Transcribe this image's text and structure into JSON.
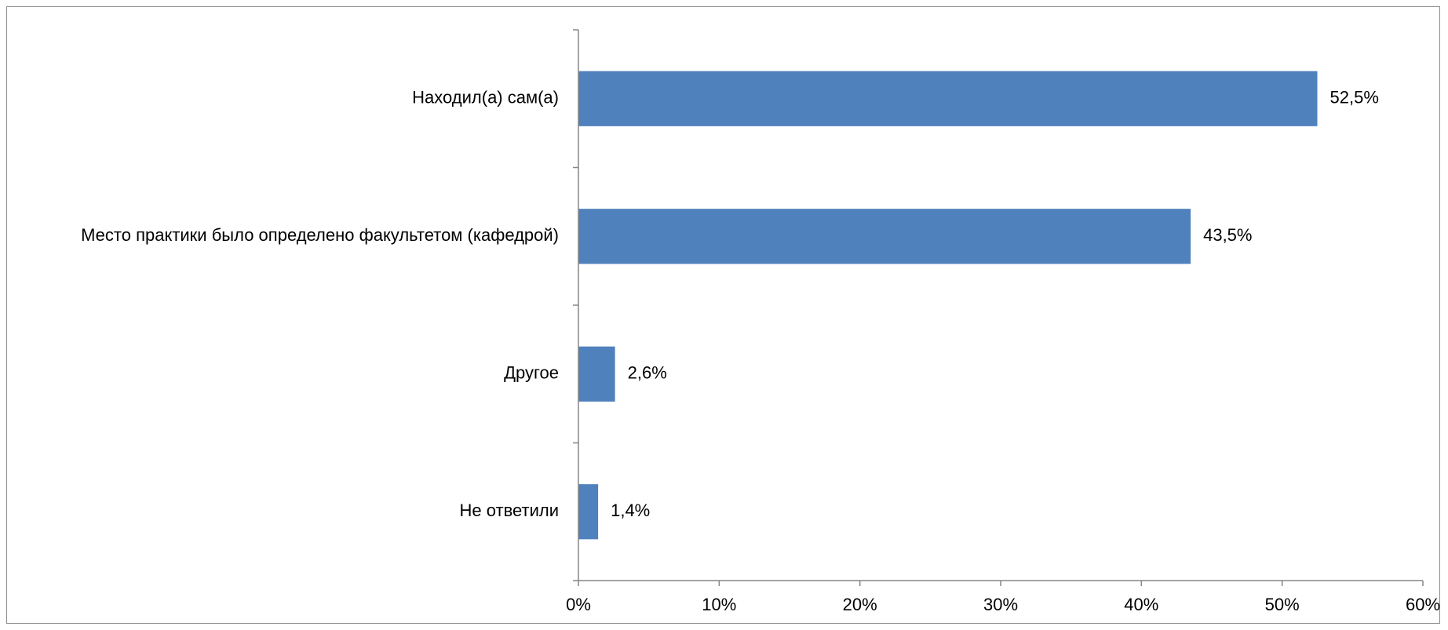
{
  "chart_data": {
    "type": "bar",
    "orientation": "horizontal",
    "categories": [
      "Находил(а) сам(а)",
      "Место практики было определено факультетом (кафедрой)",
      "Другое",
      "Не ответили"
    ],
    "values": [
      52.5,
      43.5,
      2.6,
      1.4
    ],
    "data_labels": [
      "52,5%",
      "43,5%",
      "2,6%",
      "1,4%"
    ],
    "x_ticks": [
      0,
      10,
      20,
      30,
      40,
      50,
      60
    ],
    "x_tick_labels": [
      "0%",
      "10%",
      "20%",
      "30%",
      "40%",
      "50%",
      "60%"
    ],
    "xlim": [
      0,
      60
    ],
    "unit": "%",
    "grid": false,
    "legend": "none",
    "bar_color": "#4f81bd",
    "axis_color": "#868686"
  }
}
